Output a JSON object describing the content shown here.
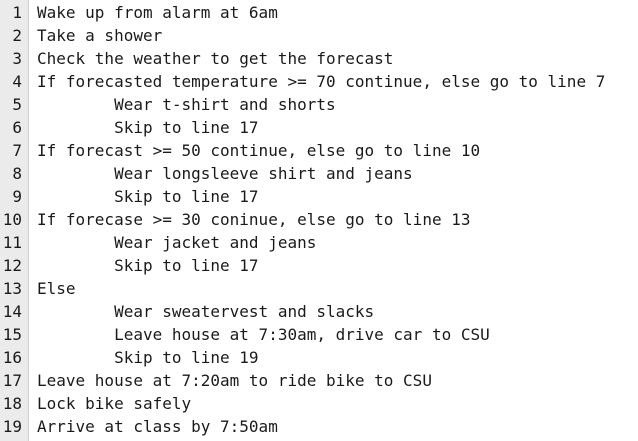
{
  "editor": {
    "lines": [
      {
        "num": "1",
        "text": "Wake up from alarm at 6am"
      },
      {
        "num": "2",
        "text": "Take a shower"
      },
      {
        "num": "3",
        "text": "Check the weather to get the forecast"
      },
      {
        "num": "4",
        "text": "If forecasted temperature >= 70 continue, else go to line 7"
      },
      {
        "num": "5",
        "text": "        Wear t-shirt and shorts"
      },
      {
        "num": "6",
        "text": "        Skip to line 17"
      },
      {
        "num": "7",
        "text": "If forecast >= 50 continue, else go to line 10"
      },
      {
        "num": "8",
        "text": "        Wear longsleeve shirt and jeans"
      },
      {
        "num": "9",
        "text": "        Skip to line 17"
      },
      {
        "num": "10",
        "text": "If forecase >= 30 coninue, else go to line 13"
      },
      {
        "num": "11",
        "text": "        Wear jacket and jeans"
      },
      {
        "num": "12",
        "text": "        Skip to line 17"
      },
      {
        "num": "13",
        "text": "Else"
      },
      {
        "num": "14",
        "text": "        Wear sweatervest and slacks"
      },
      {
        "num": "15",
        "text": "        Leave house at 7:30am, drive car to CSU"
      },
      {
        "num": "16",
        "text": "        Skip to line 19"
      },
      {
        "num": "17",
        "text": "Leave house at 7:20am to ride bike to CSU"
      },
      {
        "num": "18",
        "text": "Lock bike safely"
      },
      {
        "num": "19",
        "text": "Arrive at class by 7:50am"
      }
    ]
  }
}
